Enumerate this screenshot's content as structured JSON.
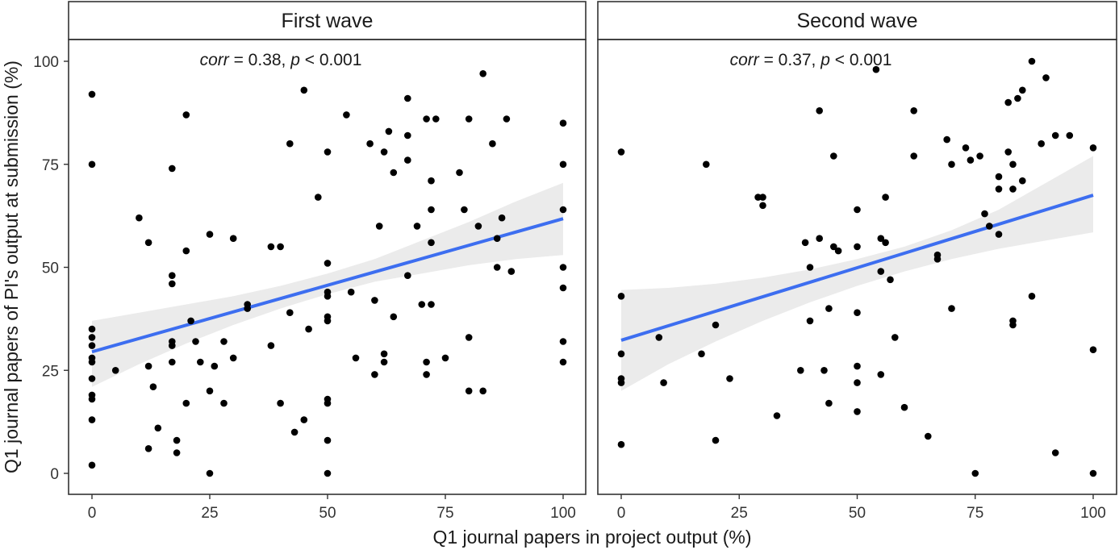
{
  "chart_data": {
    "type": "scatter",
    "xlabel": "Q1 journal papers in project output (%)",
    "ylabel": "Q1 journal papers of PI's output at submission (%)",
    "xlim": [
      0,
      100
    ],
    "ylim": [
      0,
      100
    ],
    "xticks": [
      "0",
      "25",
      "50",
      "75",
      "100"
    ],
    "yticks": [
      "0",
      "25",
      "50",
      "75",
      "100"
    ],
    "grid": false,
    "colors": {
      "points": "#000000",
      "fit_line": "#3d6ef0",
      "ci_band": "#ebebeb",
      "strip_bg": "#ffffff",
      "frame": "#333333"
    },
    "panels": [
      {
        "title": "First wave",
        "corr_prefix": "corr",
        "corr_text": " = 0.38, ",
        "p_prefix": "p",
        "p_text": " < 0.001",
        "fit": {
          "x": [
            0,
            100
          ],
          "y": [
            29.5,
            61.8
          ]
        },
        "ci": {
          "x": [
            0,
            10,
            20,
            30,
            40,
            50,
            60,
            70,
            80,
            90,
            100
          ],
          "lower": [
            21.0,
            26.5,
            31.5,
            36.0,
            40.0,
            43.5,
            46.5,
            48.5,
            50.5,
            52.0,
            53.0
          ],
          "upper": [
            37.0,
            39.0,
            41.0,
            43.0,
            45.5,
            48.5,
            52.0,
            56.5,
            61.0,
            66.0,
            70.5
          ]
        },
        "points": [
          [
            0,
            92
          ],
          [
            0,
            75
          ],
          [
            0,
            35
          ],
          [
            0,
            33
          ],
          [
            0,
            31
          ],
          [
            0,
            28
          ],
          [
            0,
            27
          ],
          [
            0,
            23
          ],
          [
            0,
            19
          ],
          [
            0,
            18
          ],
          [
            0,
            13
          ],
          [
            0,
            2
          ],
          [
            5,
            25
          ],
          [
            10,
            62
          ],
          [
            12,
            56
          ],
          [
            12,
            26
          ],
          [
            12,
            6
          ],
          [
            13,
            21
          ],
          [
            14,
            11
          ],
          [
            17,
            74
          ],
          [
            17,
            48
          ],
          [
            17,
            46
          ],
          [
            17,
            32
          ],
          [
            17,
            31
          ],
          [
            17,
            27
          ],
          [
            18,
            8
          ],
          [
            18,
            5
          ],
          [
            20,
            87
          ],
          [
            20,
            54
          ],
          [
            20,
            17
          ],
          [
            21,
            37
          ],
          [
            22,
            32
          ],
          [
            23,
            27
          ],
          [
            25,
            58
          ],
          [
            25,
            20
          ],
          [
            25,
            0
          ],
          [
            26,
            26
          ],
          [
            28,
            32
          ],
          [
            28,
            17
          ],
          [
            30,
            57
          ],
          [
            30,
            28
          ],
          [
            33,
            41
          ],
          [
            33,
            40
          ],
          [
            38,
            55
          ],
          [
            38,
            31
          ],
          [
            40,
            55
          ],
          [
            40,
            17
          ],
          [
            42,
            80
          ],
          [
            42,
            39
          ],
          [
            43,
            10
          ],
          [
            45,
            93
          ],
          [
            45,
            13
          ],
          [
            46,
            35
          ],
          [
            48,
            67
          ],
          [
            50,
            78
          ],
          [
            50,
            51
          ],
          [
            50,
            44
          ],
          [
            50,
            43
          ],
          [
            50,
            38
          ],
          [
            50,
            37
          ],
          [
            50,
            18
          ],
          [
            50,
            17
          ],
          [
            50,
            8
          ],
          [
            50,
            0
          ],
          [
            54,
            87
          ],
          [
            55,
            44
          ],
          [
            56,
            28
          ],
          [
            59,
            80
          ],
          [
            60,
            42
          ],
          [
            60,
            24
          ],
          [
            61,
            60
          ],
          [
            62,
            78
          ],
          [
            62,
            29
          ],
          [
            62,
            27
          ],
          [
            63,
            83
          ],
          [
            64,
            73
          ],
          [
            64,
            38
          ],
          [
            67,
            91
          ],
          [
            67,
            82
          ],
          [
            67,
            76
          ],
          [
            67,
            48
          ],
          [
            69,
            60
          ],
          [
            70,
            41
          ],
          [
            71,
            86
          ],
          [
            71,
            27
          ],
          [
            71,
            24
          ],
          [
            72,
            71
          ],
          [
            72,
            64
          ],
          [
            72,
            56
          ],
          [
            72,
            41
          ],
          [
            73,
            86
          ],
          [
            75,
            28
          ],
          [
            78,
            73
          ],
          [
            79,
            64
          ],
          [
            80,
            86
          ],
          [
            80,
            33
          ],
          [
            80,
            20
          ],
          [
            82,
            60
          ],
          [
            83,
            97
          ],
          [
            83,
            20
          ],
          [
            85,
            80
          ],
          [
            86,
            57
          ],
          [
            86,
            50
          ],
          [
            87,
            62
          ],
          [
            88,
            86
          ],
          [
            89,
            49
          ],
          [
            100,
            85
          ],
          [
            100,
            75
          ],
          [
            100,
            64
          ],
          [
            100,
            50
          ],
          [
            100,
            45
          ],
          [
            100,
            32
          ],
          [
            100,
            27
          ]
        ]
      },
      {
        "title": "Second wave",
        "corr_prefix": "corr",
        "corr_text": " = 0.37, ",
        "p_prefix": "p",
        "p_text": " < 0.001",
        "fit": {
          "x": [
            0,
            100
          ],
          "y": [
            32.3,
            67.5
          ]
        },
        "ci": {
          "x": [
            0,
            10,
            20,
            30,
            40,
            50,
            60,
            70,
            80,
            90,
            100
          ],
          "lower": [
            20.0,
            26.5,
            32.0,
            37.0,
            41.5,
            45.5,
            49.0,
            52.0,
            54.5,
            56.5,
            58.5
          ],
          "upper": [
            44.5,
            45.0,
            46.0,
            47.5,
            49.5,
            52.0,
            55.0,
            59.0,
            64.0,
            70.5,
            77.0
          ]
        },
        "points": [
          [
            0,
            78
          ],
          [
            0,
            43
          ],
          [
            0,
            29
          ],
          [
            0,
            23
          ],
          [
            0,
            22
          ],
          [
            0,
            7
          ],
          [
            8,
            33
          ],
          [
            9,
            22
          ],
          [
            17,
            29
          ],
          [
            18,
            75
          ],
          [
            20,
            36
          ],
          [
            20,
            8
          ],
          [
            23,
            23
          ],
          [
            29,
            67
          ],
          [
            30,
            67
          ],
          [
            30,
            65
          ],
          [
            33,
            14
          ],
          [
            38,
            25
          ],
          [
            39,
            56
          ],
          [
            40,
            50
          ],
          [
            40,
            37
          ],
          [
            42,
            88
          ],
          [
            42,
            57
          ],
          [
            43,
            25
          ],
          [
            44,
            40
          ],
          [
            44,
            17
          ],
          [
            45,
            77
          ],
          [
            45,
            55
          ],
          [
            46,
            54
          ],
          [
            50,
            64
          ],
          [
            50,
            55
          ],
          [
            50,
            39
          ],
          [
            50,
            26
          ],
          [
            50,
            22
          ],
          [
            50,
            15
          ],
          [
            54,
            98
          ],
          [
            55,
            57
          ],
          [
            55,
            49
          ],
          [
            55,
            24
          ],
          [
            56,
            67
          ],
          [
            56,
            56
          ],
          [
            57,
            47
          ],
          [
            58,
            33
          ],
          [
            60,
            16
          ],
          [
            62,
            88
          ],
          [
            62,
            77
          ],
          [
            65,
            9
          ],
          [
            67,
            52
          ],
          [
            67,
            53
          ],
          [
            69,
            81
          ],
          [
            70,
            75
          ],
          [
            70,
            40
          ],
          [
            73,
            79
          ],
          [
            74,
            76
          ],
          [
            75,
            0
          ],
          [
            76,
            77
          ],
          [
            77,
            63
          ],
          [
            78,
            60
          ],
          [
            80,
            72
          ],
          [
            80,
            69
          ],
          [
            80,
            58
          ],
          [
            82,
            90
          ],
          [
            82,
            78
          ],
          [
            83,
            75
          ],
          [
            83,
            69
          ],
          [
            83,
            37
          ],
          [
            83,
            36
          ],
          [
            84,
            91
          ],
          [
            85,
            71
          ],
          [
            85,
            93
          ],
          [
            87,
            100
          ],
          [
            87,
            43
          ],
          [
            89,
            80
          ],
          [
            90,
            96
          ],
          [
            92,
            82
          ],
          [
            92,
            5
          ],
          [
            95,
            82
          ],
          [
            100,
            79
          ],
          [
            100,
            30
          ],
          [
            100,
            0
          ]
        ]
      }
    ]
  }
}
